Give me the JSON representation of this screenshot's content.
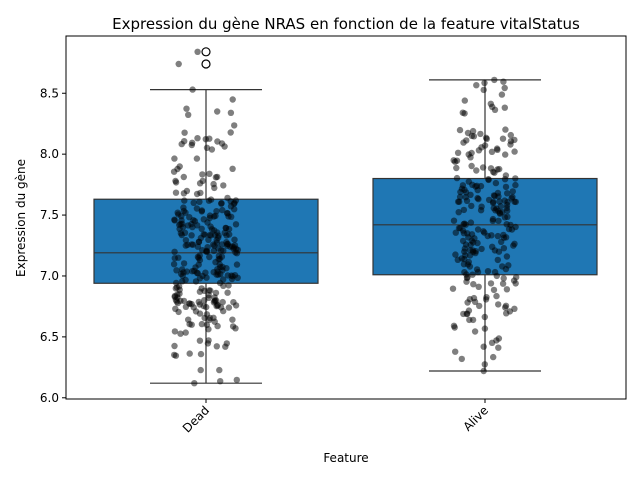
{
  "chart_data": {
    "type": "box",
    "title": "Expression du gène NRAS en fonction de la feature vitalStatus",
    "xlabel": "Feature",
    "ylabel": "Expression du gène",
    "categories": [
      "Dead",
      "Alive"
    ],
    "ylim": [
      5.99,
      8.97
    ],
    "yticks": [
      6.0,
      6.5,
      7.0,
      7.5,
      8.0,
      8.5
    ],
    "ytick_labels": [
      "6.0",
      "6.5",
      "7.0",
      "7.5",
      "8.0",
      "8.5"
    ],
    "box_color": "#1f77b4",
    "boxes": [
      {
        "category": "Dead",
        "whisker_low": 6.12,
        "q1": 6.94,
        "median": 7.19,
        "q3": 7.63,
        "whisker_high": 8.53,
        "outliers": [
          8.74,
          8.84
        ],
        "n_points": 300
      },
      {
        "category": "Alive",
        "whisker_low": 6.22,
        "q1": 7.01,
        "median": 7.42,
        "q3": 7.8,
        "whisker_high": 8.61,
        "outliers": [],
        "n_points": 240
      }
    ],
    "grid": false,
    "legend": "none"
  }
}
